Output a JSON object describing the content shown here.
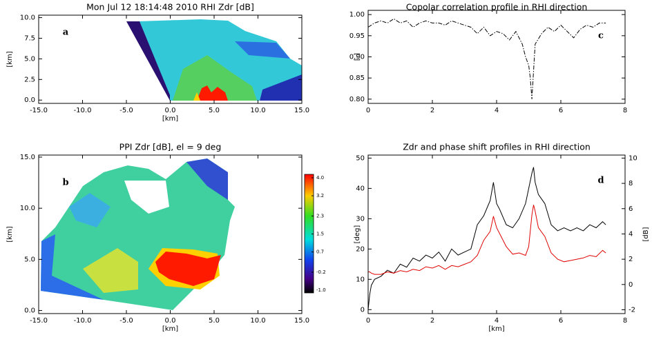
{
  "chart_data": [
    {
      "type": "image",
      "title": "Mon Jul 12 18:14:48 2010  RHI Zdr [dB]",
      "annotation": "a",
      "xlabel": "[km]",
      "ylabel": "[km]",
      "xlim": [
        -15,
        15
      ],
      "ylim": [
        -0.4,
        10.3
      ],
      "xticks": [
        {
          "value": -15,
          "label": "-15.0"
        },
        {
          "value": -10,
          "label": "-10.0"
        },
        {
          "value": -5,
          "label": "-5.0"
        },
        {
          "value": 0,
          "label": "0.0"
        },
        {
          "value": 5,
          "label": "5.0"
        },
        {
          "value": 10,
          "label": "10.0"
        },
        {
          "value": 15,
          "label": "15.0"
        }
      ],
      "yticks": [
        {
          "value": 0,
          "label": "0.0"
        },
        2.5,
        {
          "value": 5,
          "label": "5.0"
        },
        7.5,
        {
          "value": 10,
          "label": "10.0"
        }
      ]
    },
    {
      "type": "image",
      "title": "PPI Zdr [dB], el = 9 deg",
      "annotation": "b",
      "xlabel": "[km]",
      "ylabel": "[km]",
      "xlim": [
        -15,
        15
      ],
      "ylim": [
        -0.3,
        15.2
      ],
      "xticks": [
        {
          "value": -15,
          "label": "-15.0"
        },
        {
          "value": -10,
          "label": "-10.0"
        },
        {
          "value": -5,
          "label": "-5.0"
        },
        {
          "value": 0,
          "label": "0.0"
        },
        {
          "value": 5,
          "label": "5.0"
        },
        {
          "value": 10,
          "label": "10.0"
        },
        {
          "value": 15,
          "label": "15.0"
        }
      ],
      "yticks": [
        {
          "value": 0,
          "label": "0.0"
        },
        {
          "value": 5,
          "label": "5.0"
        },
        {
          "value": 10,
          "label": "10.0"
        },
        {
          "value": 15,
          "label": "15.0"
        }
      ],
      "colorbar": {
        "clim": [
          -1,
          4
        ],
        "ticks": [
          {
            "value": 4,
            "label": "4.0"
          },
          3.2,
          2.3,
          1.5,
          0.7,
          -0.2,
          {
            "value": -1,
            "label": "-1.0"
          }
        ]
      }
    },
    {
      "type": "line",
      "title": "Copolar correlation profile in RHI direction",
      "annotation": "c",
      "ylabel": "[-]",
      "xlim": [
        0,
        8
      ],
      "ylim": [
        0.79,
        1.01
      ],
      "xticks": [
        0,
        2,
        4,
        6,
        8
      ],
      "yticks": [
        {
          "value": 0.8,
          "label": "0.80"
        },
        0.85,
        {
          "value": 0.9,
          "label": "0.90"
        },
        0.95,
        {
          "value": 1,
          "label": "1.00"
        }
      ],
      "x": [
        0,
        0.2,
        0.4,
        0.6,
        0.8,
        1.0,
        1.2,
        1.4,
        1.6,
        1.8,
        2.0,
        2.2,
        2.4,
        2.6,
        2.8,
        3.0,
        3.2,
        3.4,
        3.6,
        3.8,
        4.0,
        4.2,
        4.4,
        4.6,
        4.8,
        4.9,
        5.0,
        5.05,
        5.1,
        5.2,
        5.4,
        5.6,
        5.8,
        6.0,
        6.2,
        6.4,
        6.6,
        6.8,
        7.0,
        7.2,
        7.4
      ],
      "series": [
        {
          "color": "#000000",
          "linestyle": "dashdot",
          "values": [
            0.97,
            0.98,
            0.985,
            0.98,
            0.99,
            0.98,
            0.985,
            0.97,
            0.98,
            0.985,
            0.98,
            0.98,
            0.975,
            0.985,
            0.98,
            0.975,
            0.97,
            0.955,
            0.97,
            0.95,
            0.96,
            0.955,
            0.94,
            0.96,
            0.93,
            0.9,
            0.88,
            0.85,
            0.8,
            0.93,
            0.955,
            0.97,
            0.96,
            0.975,
            0.96,
            0.945,
            0.965,
            0.975,
            0.97,
            0.98,
            0.98
          ]
        }
      ]
    },
    {
      "type": "line",
      "title": "Zdr and phase shift profiles in RHI direction",
      "annotation": "d",
      "xlabel": "[km]",
      "ylabel": "[deg]",
      "y2label": "[dB]",
      "xlim": [
        0,
        8
      ],
      "ylim": [
        -1.3,
        51
      ],
      "y2lim": [
        -2.3,
        10.24
      ],
      "xticks": [
        0,
        2,
        4,
        6,
        8
      ],
      "yticks": [
        0,
        10,
        20,
        30,
        40,
        50
      ],
      "y2ticks": [
        -2,
        0,
        2,
        4,
        6,
        8,
        10
      ],
      "x": [
        0,
        0.05,
        0.1,
        0.2,
        0.4,
        0.6,
        0.8,
        1.0,
        1.2,
        1.4,
        1.6,
        1.8,
        2.0,
        2.2,
        2.4,
        2.6,
        2.8,
        3.0,
        3.2,
        3.4,
        3.6,
        3.8,
        3.9,
        4.0,
        4.1,
        4.3,
        4.5,
        4.7,
        4.9,
        5.0,
        5.1,
        5.15,
        5.2,
        5.3,
        5.5,
        5.7,
        5.9,
        6.1,
        6.3,
        6.5,
        6.7,
        6.9,
        7.1,
        7.3,
        7.4
      ],
      "series": [
        {
          "color": "#000000",
          "values": [
            0,
            5,
            8,
            10,
            11,
            13,
            12,
            15,
            14,
            17,
            16,
            18,
            17,
            19,
            16,
            20,
            18,
            19,
            20,
            28,
            31,
            36,
            42,
            35,
            33,
            28,
            27,
            30,
            35,
            40,
            45,
            47,
            42,
            38,
            35,
            28,
            26,
            27,
            26,
            27,
            26,
            28,
            27,
            29,
            28
          ]
        },
        {
          "color": "#e00000",
          "axis": "y2",
          "values": [
            1,
            1,
            0.9,
            0.8,
            0.8,
            1,
            0.9,
            1.1,
            1,
            1.2,
            1.1,
            1.4,
            1.3,
            1.5,
            1.2,
            1.5,
            1.4,
            1.6,
            1.8,
            2.3,
            3.5,
            4.2,
            5.4,
            4.5,
            4,
            3,
            2.4,
            2.5,
            2.3,
            3,
            5.5,
            6.3,
            5.8,
            4.5,
            3.8,
            2.5,
            2,
            1.8,
            1.9,
            2,
            2.1,
            2.3,
            2.2,
            2.7,
            2.5
          ]
        }
      ]
    }
  ]
}
